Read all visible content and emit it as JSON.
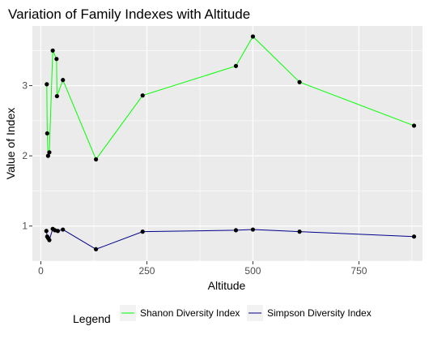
{
  "chart_data": {
    "type": "line",
    "title": "Variation of Family Indexes with Altitude",
    "xlabel": "Altitude",
    "ylabel": "Value of Index",
    "xlim": [
      -20,
      900
    ],
    "ylim": [
      0.5,
      3.85
    ],
    "x_ticks": [
      0,
      250,
      500,
      750
    ],
    "x_tick_labels": [
      "0",
      "250",
      "500",
      "750"
    ],
    "y_ticks": [
      1,
      2,
      3
    ],
    "y_tick_labels": [
      "1",
      "2",
      "3"
    ],
    "grid": true,
    "legend": {
      "title": "Legend",
      "position": "bottom"
    },
    "points_color": "#000000",
    "series": [
      {
        "name": "Shanon Diversity Index",
        "color": "#00ff00",
        "points": [
          [
            14,
            3.02
          ],
          [
            15,
            2.32
          ],
          [
            17,
            2.0
          ],
          [
            20,
            2.05
          ],
          [
            28,
            3.5
          ],
          [
            37,
            3.38
          ],
          [
            38,
            2.85
          ],
          [
            52,
            3.08
          ],
          [
            130,
            1.95
          ],
          [
            240,
            2.86
          ],
          [
            460,
            3.28
          ],
          [
            500,
            3.7
          ],
          [
            610,
            3.05
          ],
          [
            880,
            2.43
          ]
        ]
      },
      {
        "name": "Simpson Diversity Index",
        "color": "#00008b",
        "points": [
          [
            13,
            0.93
          ],
          [
            15,
            0.85
          ],
          [
            17,
            0.83
          ],
          [
            20,
            0.8
          ],
          [
            28,
            0.96
          ],
          [
            33,
            0.94
          ],
          [
            40,
            0.93
          ],
          [
            52,
            0.95
          ],
          [
            130,
            0.67
          ],
          [
            240,
            0.92
          ],
          [
            460,
            0.94
          ],
          [
            500,
            0.95
          ],
          [
            610,
            0.92
          ],
          [
            880,
            0.85
          ]
        ]
      }
    ]
  }
}
